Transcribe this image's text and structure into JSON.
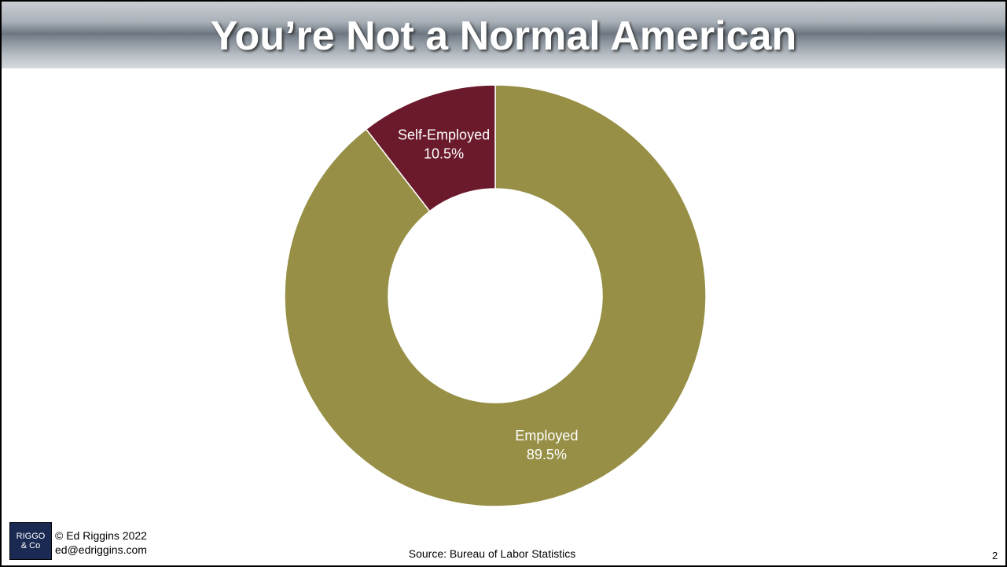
{
  "chart_data": {
    "type": "donut",
    "title": "You’re Not a Normal American",
    "categories": [
      "Employed",
      "Self-Employed"
    ],
    "values": [
      89.5,
      10.5
    ],
    "value_labels": [
      "89.5%",
      "10.5%"
    ],
    "colors": [
      "#968f45",
      "#6b1a2c"
    ],
    "source": "Source: Bureau of Labor Statistics"
  },
  "footer": {
    "logo": [
      "RIGGO",
      "& Co"
    ],
    "copyright": "© Ed Riggins 2022",
    "email": "ed@edriggins.com",
    "page_number": "2"
  }
}
